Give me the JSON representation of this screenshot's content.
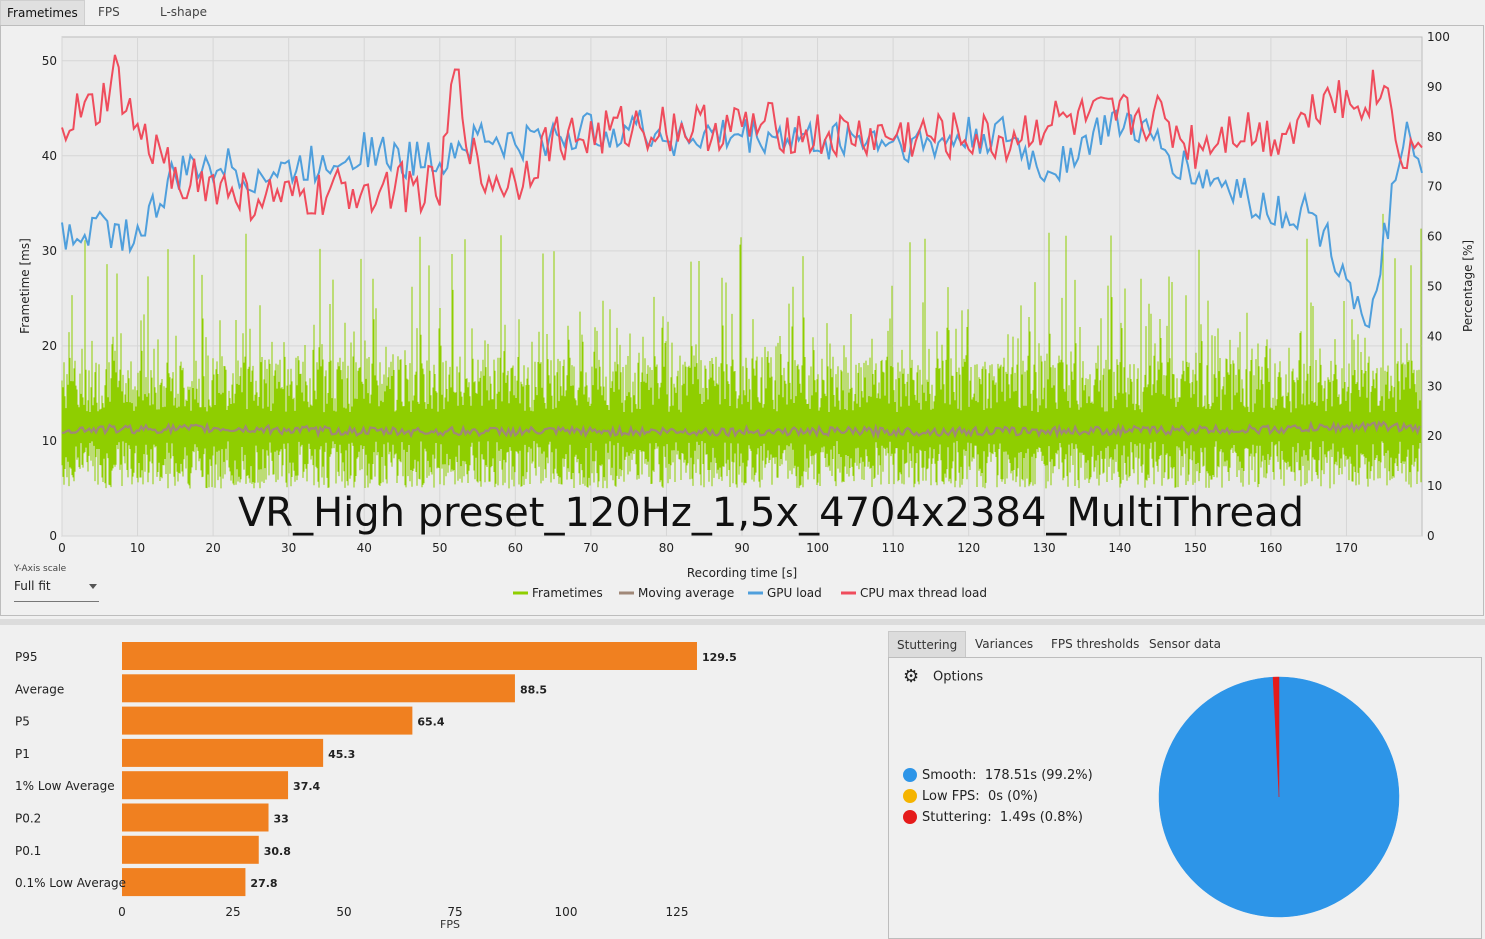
{
  "tabs": [
    "Frametimes",
    "FPS",
    "L-shape"
  ],
  "frametime_chart": {
    "title": "VR_High preset_120Hz_1,5x_4704x2384_MultiThread",
    "xlabel": "Recording time [s]",
    "ylabel": "Frametime [ms]",
    "y2label": "Percentage [%]",
    "x_ticks": [
      0,
      10,
      20,
      30,
      40,
      50,
      60,
      70,
      80,
      90,
      100,
      110,
      120,
      130,
      140,
      150,
      160,
      170
    ],
    "y_ticks": [
      0,
      10,
      20,
      30,
      40,
      50
    ],
    "y2_ticks": [
      0,
      10,
      20,
      30,
      40,
      50,
      60,
      70,
      80,
      90,
      100
    ],
    "legend": [
      "Frametimes",
      "Moving average",
      "GPU load",
      "CPU max thread load"
    ],
    "colors": {
      "frametimes": "#8fce00",
      "moving_average": "#a08878",
      "gpu": "#4f9fdc",
      "cpu": "#ef4c5c"
    }
  },
  "yaxis_scale": {
    "label": "Y-Axis scale",
    "value": "Full fit"
  },
  "right_tabs": [
    "Stuttering",
    "Variances",
    "FPS thresholds",
    "Sensor data"
  ],
  "stuttering": {
    "options_label": "Options",
    "items": [
      {
        "name": "Smooth:",
        "value": "178.51s (99.2%)",
        "color": "#2d95e8"
      },
      {
        "name": "Low FPS:",
        "value": "0s (0%)",
        "color": "#f5b400"
      },
      {
        "name": "Stuttering:",
        "value": "1.49s (0.8%)",
        "color": "#e51b1b"
      }
    ]
  },
  "chart_data": [
    {
      "type": "line",
      "title": "VR_High preset_120Hz_1,5x_4704x2384_MultiThread",
      "xlabel": "Recording time [s]",
      "ylabel": "Frametime [ms]",
      "y2label": "Percentage [%]",
      "xlim": [
        0,
        180
      ],
      "ylim": [
        0,
        52.5
      ],
      "y2lim": [
        0,
        100
      ],
      "legend_position": "bottom",
      "series": [
        {
          "name": "Frametimes",
          "note": "dense band roughly 5-18 ms with spikes to ~36 ms"
        },
        {
          "name": "Moving average",
          "x": [
            0,
            20,
            40,
            60,
            80,
            100,
            120,
            140,
            160,
            175,
            180
          ],
          "values": [
            11.2,
            11.3,
            11,
            11,
            11,
            11,
            11,
            11.1,
            11.2,
            11.6,
            11.2
          ]
        },
        {
          "name": "GPU load",
          "x": [
            0,
            5,
            10,
            15,
            20,
            25,
            30,
            35,
            40,
            45,
            50,
            55,
            60,
            65,
            70,
            75,
            80,
            85,
            90,
            95,
            100,
            105,
            110,
            115,
            120,
            125,
            130,
            135,
            140,
            145,
            150,
            155,
            160,
            165,
            170,
            173,
            175,
            178,
            180
          ],
          "values": [
            60,
            62,
            60,
            72,
            75,
            72,
            73,
            75,
            78,
            75,
            76,
            80,
            78,
            80,
            81,
            82,
            80,
            80,
            80,
            80,
            79,
            80,
            79,
            78,
            80,
            80,
            73,
            78,
            84,
            78,
            72,
            70,
            65,
            65,
            53,
            38,
            60,
            80,
            70
          ]
        },
        {
          "name": "CPU max thread load",
          "x": [
            0,
            5,
            7,
            10,
            15,
            20,
            25,
            30,
            35,
            40,
            45,
            50,
            52,
            55,
            60,
            65,
            70,
            75,
            80,
            85,
            90,
            95,
            100,
            105,
            110,
            115,
            120,
            125,
            130,
            135,
            140,
            145,
            150,
            155,
            160,
            165,
            168,
            170,
            175,
            178,
            180
          ],
          "values": [
            83,
            85,
            92,
            80,
            73,
            70,
            68,
            67,
            68,
            70,
            70,
            69,
            93,
            72,
            71,
            80,
            80,
            82,
            82,
            82,
            82,
            82,
            80,
            80,
            80,
            80,
            80,
            79,
            83,
            83,
            84,
            84,
            78,
            82,
            80,
            84,
            91,
            86,
            90,
            75,
            80
          ]
        }
      ]
    },
    {
      "type": "bar",
      "orientation": "horizontal",
      "xlabel": "FPS",
      "categories": [
        "P95",
        "Average",
        "P5",
        "P1",
        "1% Low Average",
        "P0.2",
        "P0.1",
        "0.1% Low Average"
      ],
      "values": [
        129.5,
        88.5,
        65.4,
        45.3,
        37.4,
        33,
        30.8,
        27.8
      ],
      "labels": [
        "129.5",
        "88.5",
        "65.4",
        "45.3",
        "37.4",
        "33",
        "30.8",
        "27.8"
      ],
      "x_ticks": [
        0,
        25,
        50,
        75,
        100,
        125
      ],
      "xlim": [
        0,
        140
      ],
      "color": "#f08020"
    },
    {
      "type": "pie",
      "categories": [
        "Smooth",
        "Low FPS",
        "Stuttering"
      ],
      "values": [
        99.2,
        0,
        0.8
      ],
      "colors": [
        "#2d95e8",
        "#f5b400",
        "#e51b1b"
      ]
    }
  ]
}
